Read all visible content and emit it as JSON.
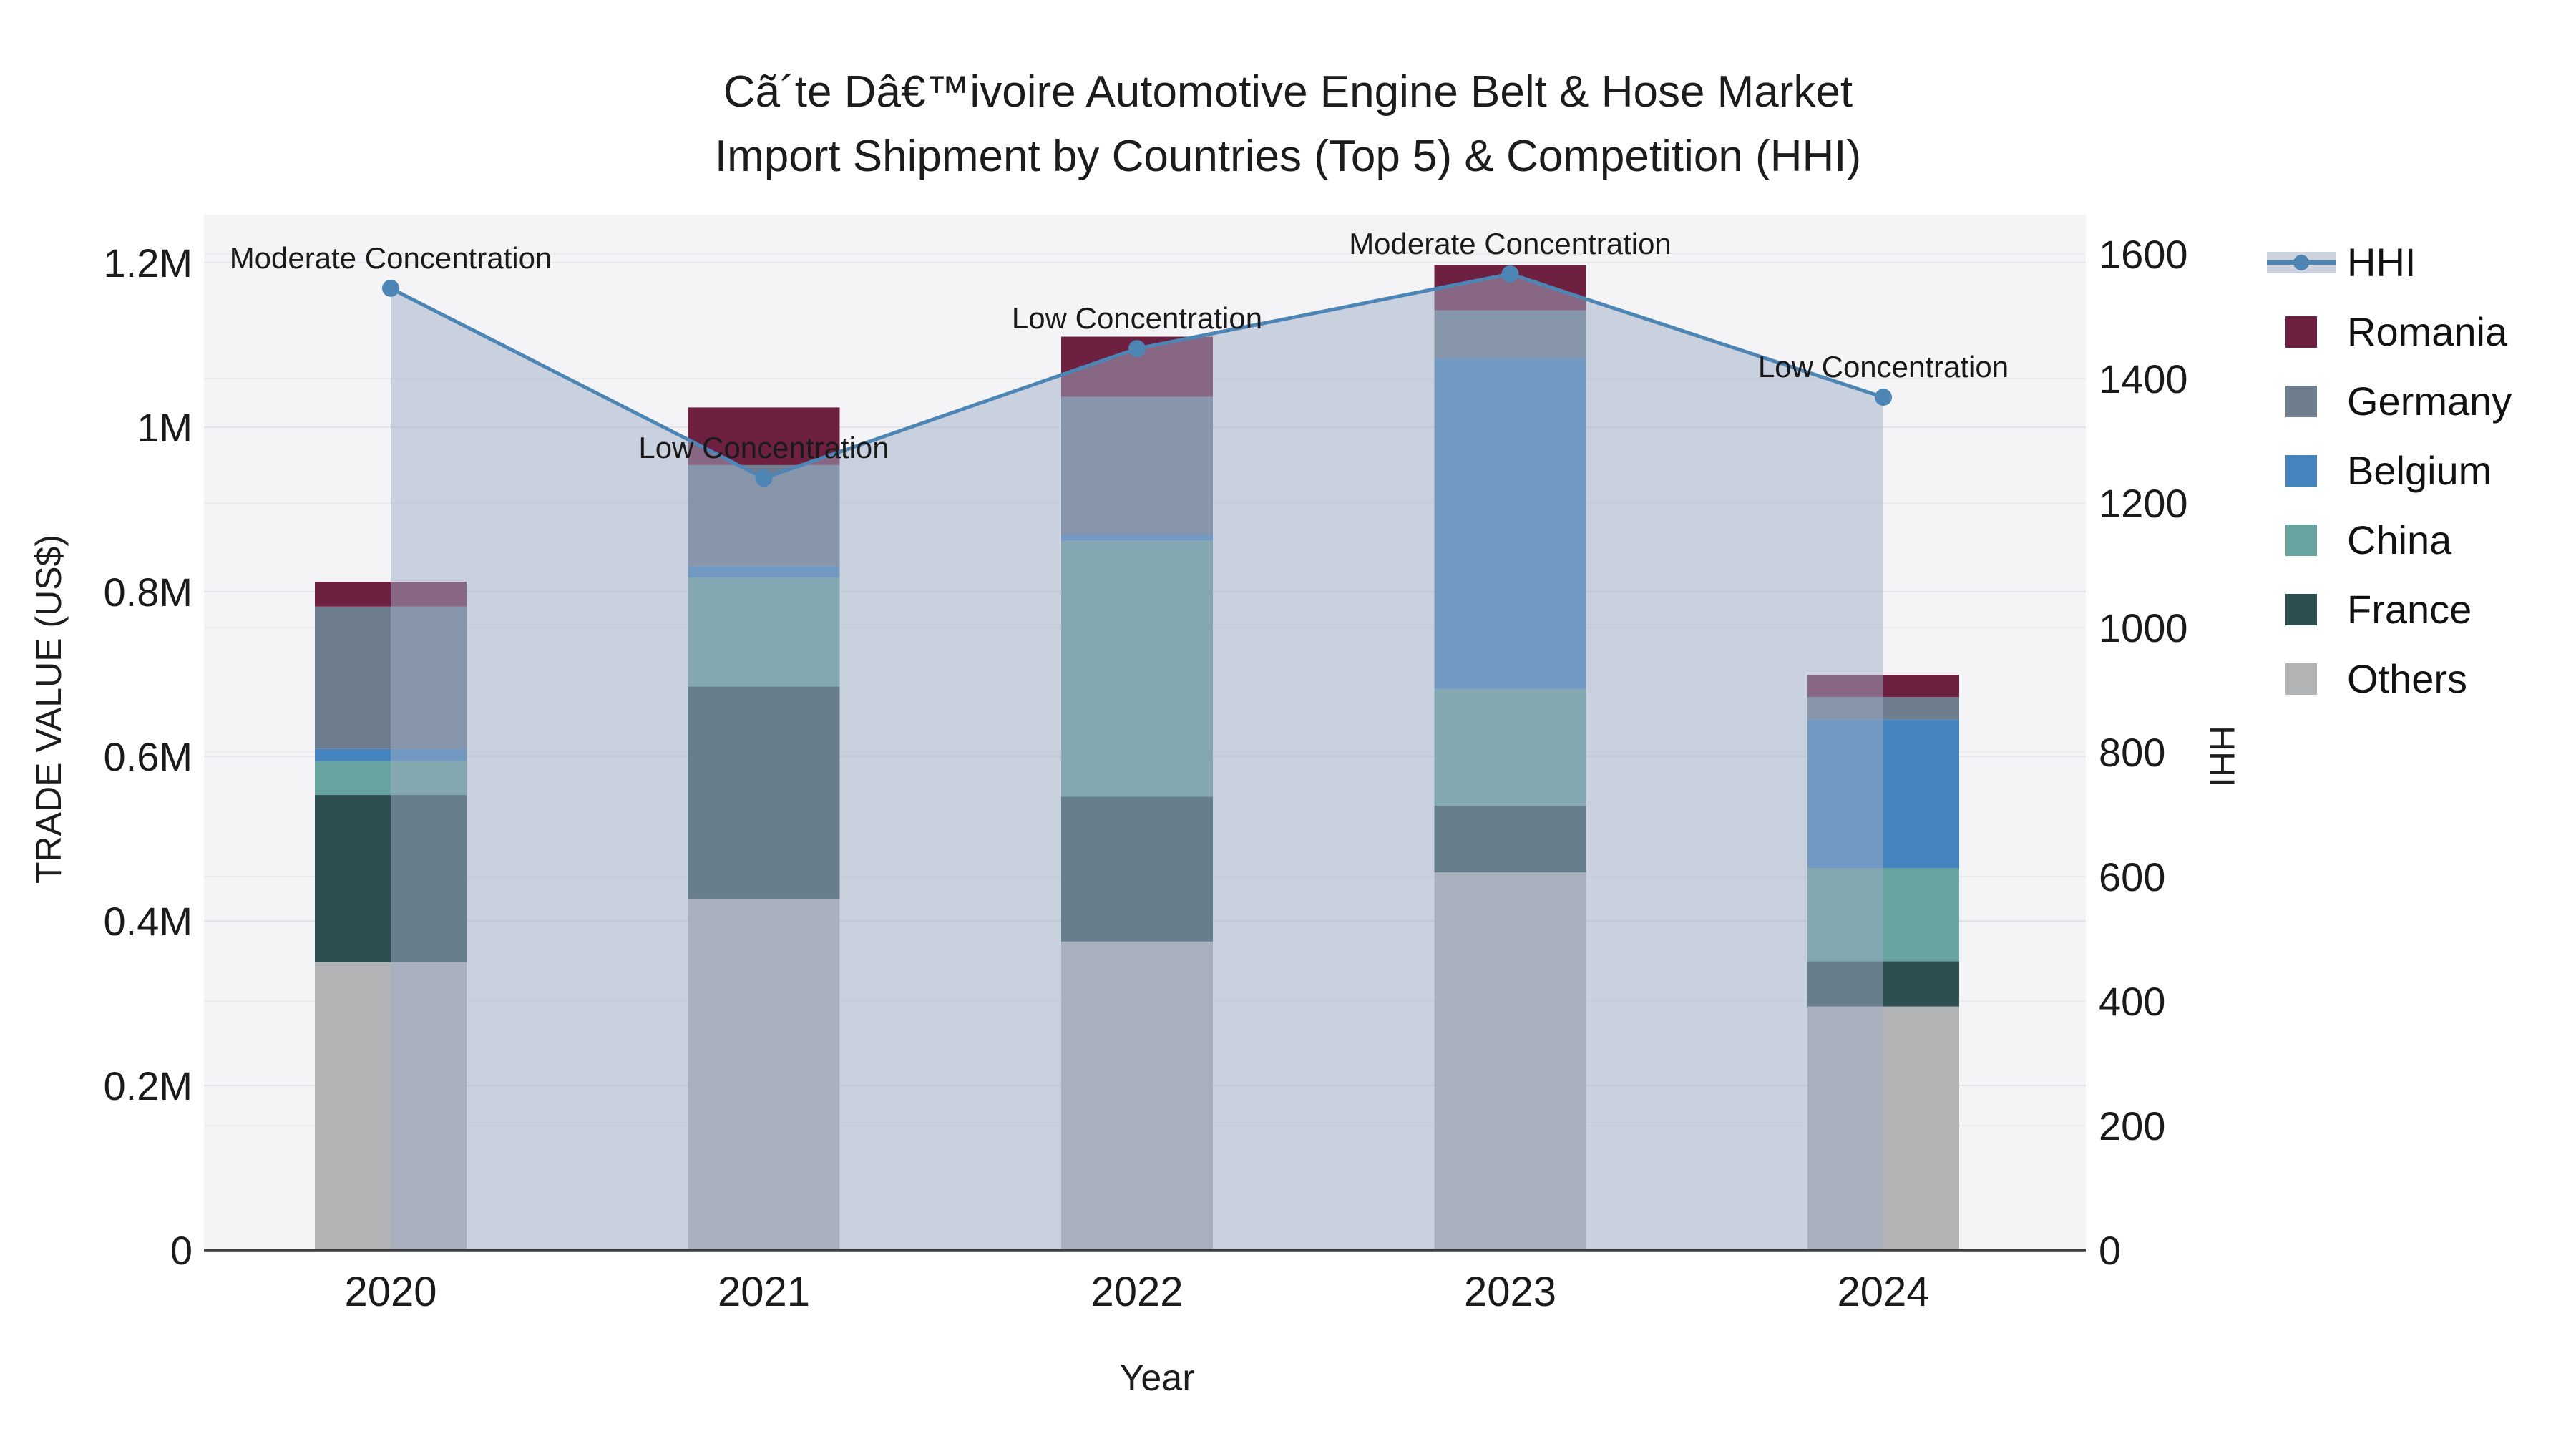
{
  "title": {
    "line1": "Cã´te Dâ€™ivoire Automotive Engine Belt & Hose Market",
    "line2": "Import Shipment by Countries (Top 5) & Competition (HHI)"
  },
  "axes": {
    "x_title": "Year",
    "y_left_title": "TRADE VALUE (US$)",
    "y_right_title": "HHI",
    "y_left_tick_labels": [
      "0",
      "0.2M",
      "0.4M",
      "0.6M",
      "0.8M",
      "1M",
      "1.2M"
    ],
    "y_left_tick_values": [
      0,
      200000,
      400000,
      600000,
      800000,
      1000000,
      1200000
    ],
    "y_right_tick_labels": [
      "0",
      "200",
      "400",
      "600",
      "800",
      "1000",
      "1200",
      "1400",
      "1600"
    ],
    "y_right_tick_values": [
      0,
      200,
      400,
      600,
      800,
      1000,
      1200,
      1400,
      1600
    ]
  },
  "legend": {
    "items": [
      {
        "label": "HHI",
        "type": "line",
        "color": "#4d86b5"
      },
      {
        "label": "Romania",
        "type": "square",
        "color": "#6e2040"
      },
      {
        "label": "Germany",
        "type": "square",
        "color": "#6e7e8e"
      },
      {
        "label": "Belgium",
        "type": "square",
        "color": "#4584bf"
      },
      {
        "label": "China",
        "type": "square",
        "color": "#67a39f"
      },
      {
        "label": "France",
        "type": "square",
        "color": "#2e4f52"
      },
      {
        "label": "Others",
        "type": "square",
        "color": "#b1b3b4"
      }
    ]
  },
  "chart_data": {
    "type": "bar",
    "subtype": "stacked bars (trade value, left axis) + HHI line with shaded area (right axis)",
    "categories": [
      "2020",
      "2021",
      "2022",
      "2023",
      "2024"
    ],
    "stack_order_bottom_to_top": [
      "Others",
      "France",
      "China",
      "Belgium",
      "Germany",
      "Romania"
    ],
    "series": [
      {
        "name": "Others",
        "color": "#b1b3b4",
        "values": [
          350000,
          427000,
          375000,
          459000,
          296000
        ]
      },
      {
        "name": "France",
        "color": "#2e4f52",
        "values": [
          203000,
          258000,
          176000,
          81000,
          55000
        ]
      },
      {
        "name": "China",
        "color": "#67a39f",
        "values": [
          41000,
          132000,
          311000,
          142000,
          113000
        ]
      },
      {
        "name": "Belgium",
        "color": "#4584bf",
        "values": [
          15000,
          14000,
          8000,
          402000,
          181000
        ]
      },
      {
        "name": "Germany",
        "color": "#6e7e8e",
        "values": [
          173000,
          123000,
          167000,
          58000,
          27000
        ]
      },
      {
        "name": "Romania",
        "color": "#6e2040",
        "values": [
          30000,
          70000,
          73000,
          55000,
          27000
        ]
      }
    ],
    "bar_totals": [
      812000,
      1024000,
      1110000,
      1197000,
      699000
    ],
    "line_series": {
      "name": "HHI",
      "color": "#4d86b5",
      "area_fill": "rgba(160,174,197,0.5)",
      "values": [
        1545,
        1240,
        1448,
        1568,
        1370
      ],
      "annotations": [
        "Moderate Concentration",
        "Low Concentration",
        "Low Concentration",
        "Moderate Concentration",
        "Low Concentration"
      ]
    },
    "xlabel": "Year",
    "ylabel_left": "TRADE VALUE (US$)",
    "ylabel_right": "HHI",
    "ylim_left": [
      0,
      1260000
    ],
    "ylim_right": [
      0,
      1665
    ],
    "grid": true,
    "legend_position": "right",
    "plot_bg": "#f4f4f6",
    "grid_color_left": "#e3e3e7",
    "grid_color_right": "#ebebee",
    "axis_line_color": "#3d3d3d",
    "tick_color": "#1a1a1a",
    "annotation_color": "#1a1a1a"
  }
}
